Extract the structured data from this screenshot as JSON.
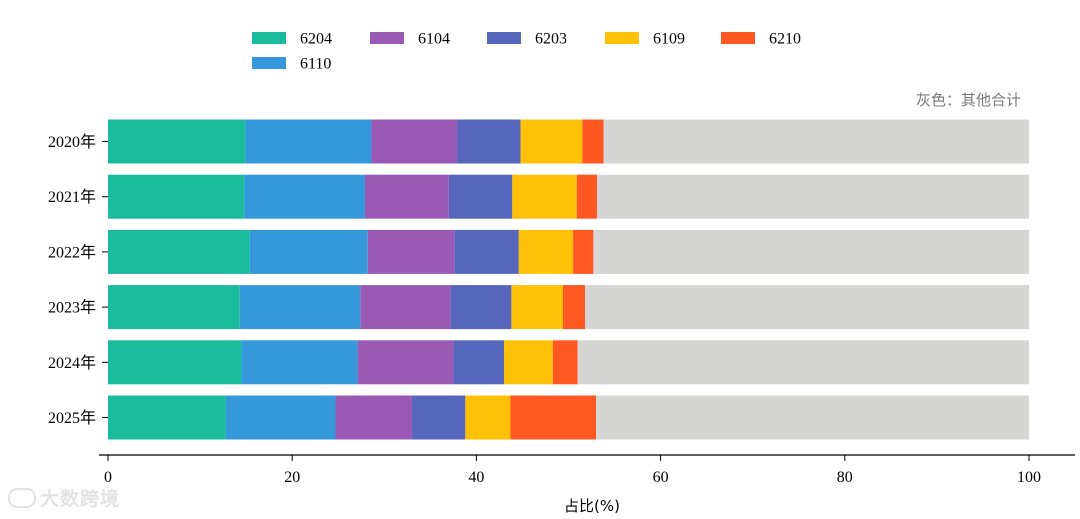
{
  "chart_data": {
    "type": "bar",
    "orientation": "horizontal",
    "stacked": true,
    "categories": [
      "2020年",
      "2021年",
      "2022年",
      "2023年",
      "2024年",
      "2025年"
    ],
    "series": [
      {
        "name": "6204",
        "color": "#1abc9c",
        "values": [
          14.9,
          14.8,
          15.4,
          14.3,
          14.5,
          12.8
        ]
      },
      {
        "name": "6110",
        "color": "#3498db",
        "values": [
          13.7,
          13.1,
          12.8,
          13.1,
          12.6,
          11.9
        ]
      },
      {
        "name": "6104",
        "color": "#9b59b6",
        "values": [
          9.3,
          9.1,
          9.4,
          9.8,
          10.4,
          8.3
        ]
      },
      {
        "name": "6203",
        "color": "#5566bb",
        "values": [
          6.9,
          6.9,
          7.0,
          6.6,
          5.5,
          5.8
        ]
      },
      {
        "name": "6109",
        "color": "#ffc107",
        "values": [
          6.7,
          7.0,
          5.9,
          5.6,
          5.3,
          4.9
        ]
      },
      {
        "name": "6210",
        "color": "#ff5722",
        "values": [
          2.3,
          2.2,
          2.2,
          2.4,
          2.7,
          9.3
        ]
      },
      {
        "name": "其他合计",
        "color": "#d5d5d3",
        "values": [
          46.2,
          46.9,
          47.3,
          48.2,
          49.0,
          47.0
        ]
      }
    ],
    "xlim": [
      0,
      100
    ],
    "xticks": [
      0,
      20,
      40,
      60,
      80,
      100
    ],
    "xlabel": "占比(%)",
    "ylabel": "",
    "note": "灰色：其他合计",
    "legend": {
      "placement": "top",
      "entries": [
        "6204",
        "6104",
        "6203",
        "6109",
        "6210",
        "6110"
      ]
    },
    "grid": false
  },
  "watermark": "大数跨境"
}
